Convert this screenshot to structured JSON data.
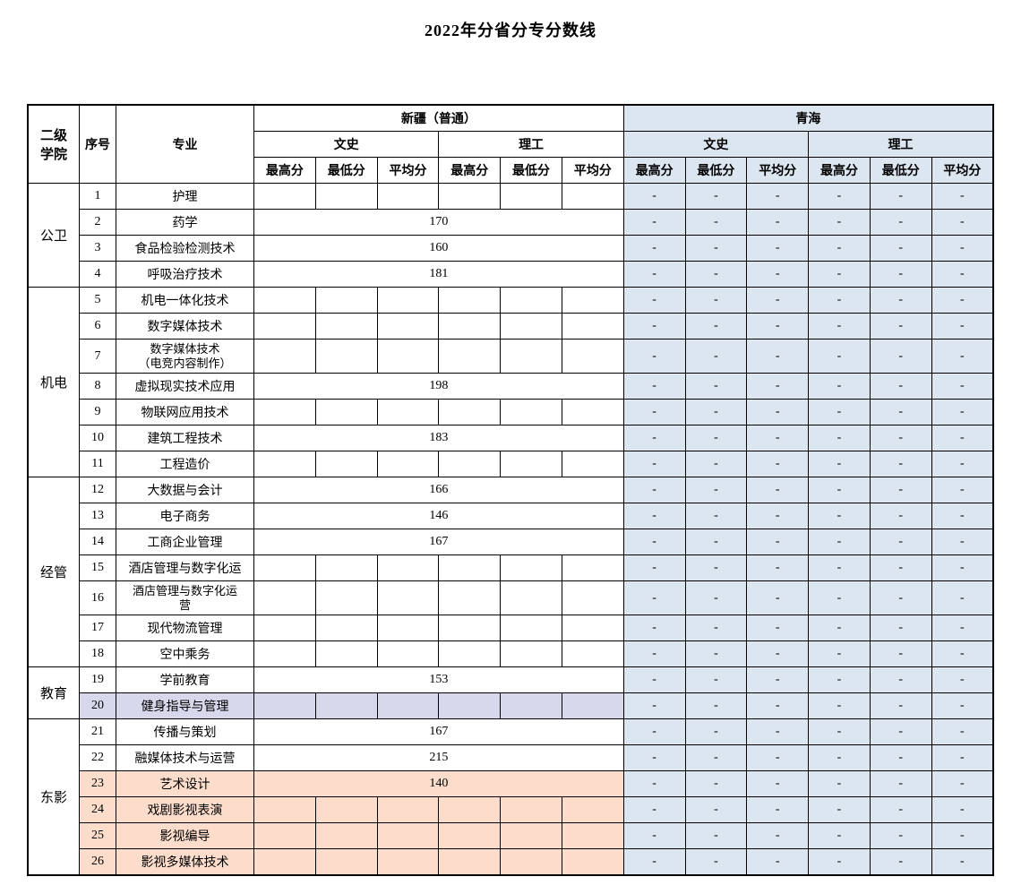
{
  "title": "2022年分省分专分数线",
  "headers": {
    "college": "二级\n学院",
    "seq": "序号",
    "major": "专业",
    "region1": "新疆（普通）",
    "region2": "青海",
    "cat_wen": "文史",
    "cat_li": "理工",
    "max": "最高分",
    "min": "最低分",
    "avg": "平均分"
  },
  "colleges": [
    {
      "name": "公卫",
      "rows": [
        1,
        2,
        3,
        4
      ]
    },
    {
      "name": "机电",
      "rows": [
        5,
        6,
        7,
        8,
        9,
        10,
        11
      ]
    },
    {
      "name": "经管",
      "rows": [
        12,
        13,
        14,
        15,
        16,
        17,
        18
      ]
    },
    {
      "name": "教育",
      "rows": [
        19,
        20
      ]
    },
    {
      "name": "东影",
      "rows": [
        21,
        22,
        23,
        24,
        25,
        26
      ]
    }
  ],
  "rows": [
    {
      "seq": "1",
      "major": "护理",
      "xin_val": "",
      "fill": ""
    },
    {
      "seq": "2",
      "major": "药学",
      "xin_val": "170",
      "fill": ""
    },
    {
      "seq": "3",
      "major": "食品检验检测技术",
      "xin_val": "160",
      "fill": ""
    },
    {
      "seq": "4",
      "major": "呼吸治疗技术",
      "xin_val": "181",
      "fill": ""
    },
    {
      "seq": "5",
      "major": "机电一体化技术",
      "xin_val": "",
      "fill": ""
    },
    {
      "seq": "6",
      "major": "数字媒体技术",
      "xin_val": "",
      "fill": ""
    },
    {
      "seq": "7",
      "major": "数字媒体技术\n（电竞内容制作）",
      "xin_val": "",
      "fill": ""
    },
    {
      "seq": "8",
      "major": "虚拟现实技术应用",
      "xin_val": "198",
      "fill": ""
    },
    {
      "seq": "9",
      "major": "物联网应用技术",
      "xin_val": "",
      "fill": ""
    },
    {
      "seq": "10",
      "major": "建筑工程技术",
      "xin_val": "183",
      "fill": ""
    },
    {
      "seq": "11",
      "major": "工程造价",
      "xin_val": "",
      "fill": ""
    },
    {
      "seq": "12",
      "major": "大数据与会计",
      "xin_val": "166",
      "fill": ""
    },
    {
      "seq": "13",
      "major": "电子商务",
      "xin_val": "146",
      "fill": ""
    },
    {
      "seq": "14",
      "major": "工商企业管理",
      "xin_val": "167",
      "fill": ""
    },
    {
      "seq": "15",
      "major": "酒店管理与数字化运",
      "xin_val": "",
      "fill": ""
    },
    {
      "seq": "16",
      "major": "酒店管理与数字化运\n营",
      "xin_val": "",
      "fill": ""
    },
    {
      "seq": "17",
      "major": "现代物流管理",
      "xin_val": "",
      "fill": ""
    },
    {
      "seq": "18",
      "major": "空中乘务",
      "xin_val": "",
      "fill": ""
    },
    {
      "seq": "19",
      "major": "学前教育",
      "xin_val": "153",
      "fill": ""
    },
    {
      "seq": "20",
      "major": "健身指导与管理",
      "xin_val": "",
      "fill": "lav"
    },
    {
      "seq": "21",
      "major": "传播与策划",
      "xin_val": "167",
      "fill": ""
    },
    {
      "seq": "22",
      "major": "融媒体技术与运营",
      "xin_val": "215",
      "fill": ""
    },
    {
      "seq": "23",
      "major": "艺术设计",
      "xin_val": "140",
      "fill": "peach"
    },
    {
      "seq": "24",
      "major": "戏剧影视表演",
      "xin_val": "",
      "fill": "peach"
    },
    {
      "seq": "25",
      "major": "影视编导",
      "xin_val": "",
      "fill": "peach"
    },
    {
      "seq": "26",
      "major": "影视多媒体技术",
      "xin_val": "",
      "fill": "peach"
    }
  ],
  "qinghai_dash": "-",
  "colors": {
    "blue": "#dce6f0",
    "lav": "#d8d8ec",
    "peach": "#fcdccb"
  }
}
